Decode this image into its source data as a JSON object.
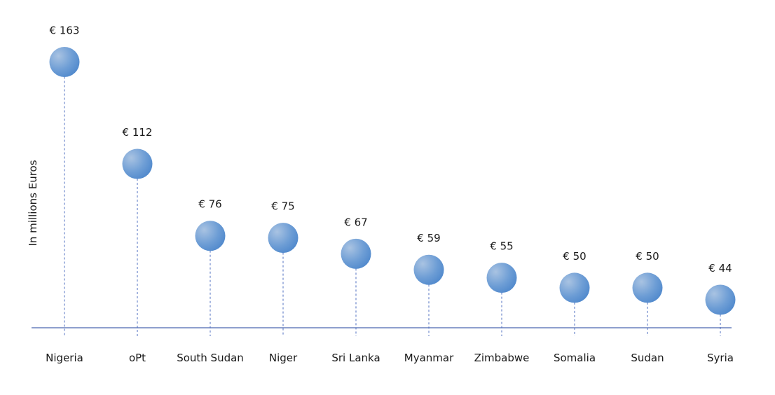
{
  "chart_data": {
    "type": "scatter",
    "subtype": "lollipop",
    "title": "",
    "xlabel": "",
    "ylabel": "In millions Euros",
    "categories": [
      "Nigeria",
      "oPt",
      "South Sudan",
      "Niger",
      "Sri Lanka",
      "Myanmar",
      "Zimbabwe",
      "Somalia",
      "Sudan",
      "Syria"
    ],
    "values": [
      163,
      112,
      76,
      75,
      67,
      59,
      55,
      50,
      50,
      44
    ],
    "labels": [
      "€ 163",
      "€ 112",
      "€ 76",
      "€ 75",
      "€ 67",
      "€ 59",
      "€ 55",
      "€ 50",
      "€ 50",
      "€ 44"
    ],
    "ylim": [
      30,
      194
    ],
    "grid": false,
    "colors": {
      "bubble_light": "#a9c3e2",
      "bubble_dark": "#4f88cc",
      "stem": "#4f6fc0",
      "axis": "#4a66b0"
    }
  }
}
